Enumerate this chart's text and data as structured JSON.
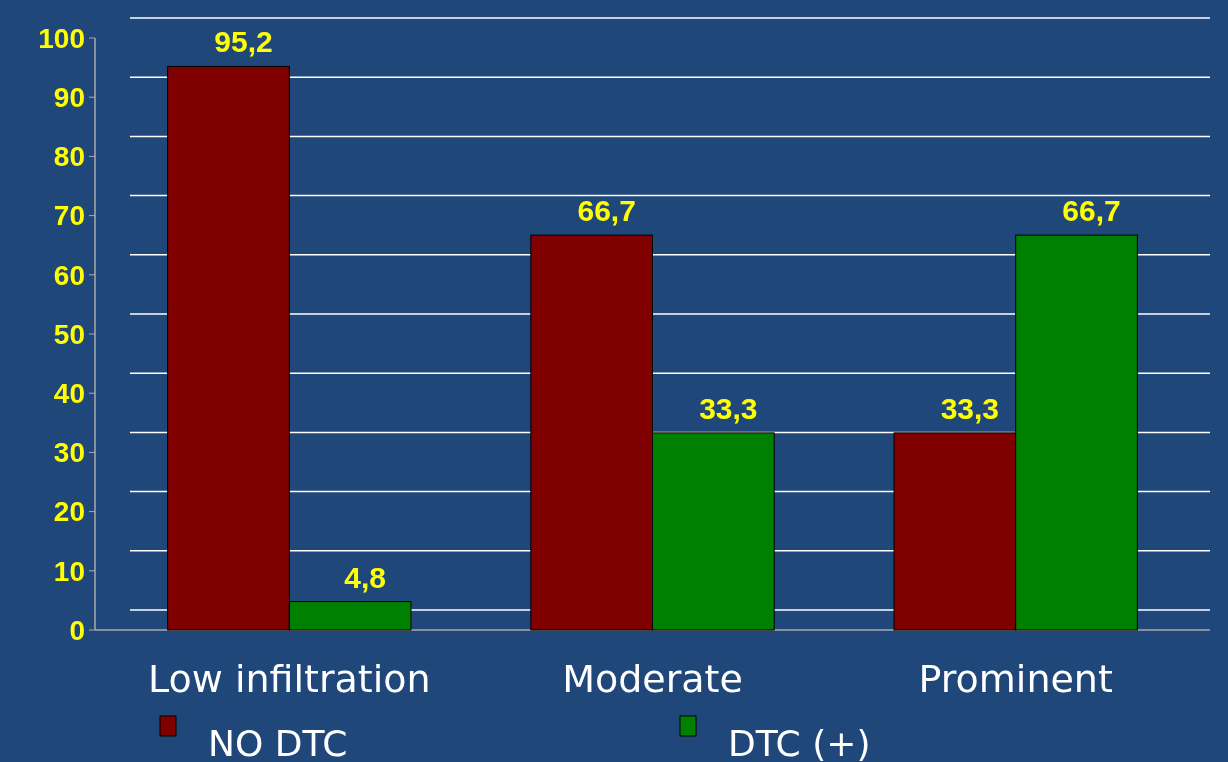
{
  "chart_data": {
    "type": "bar",
    "categories": [
      "Low infiltration",
      "Moderate",
      "Prominent"
    ],
    "series": [
      {
        "name": "NO DTC",
        "color": "#800000",
        "values": [
          95.2,
          66.7,
          33.3
        ],
        "value_labels": [
          "95,2",
          "66,7",
          "33,3"
        ]
      },
      {
        "name": "DTC (+)",
        "color": "#008000",
        "values": [
          4.8,
          33.3,
          66.7
        ],
        "value_labels": [
          "4,8",
          "33,3",
          "66,7"
        ]
      }
    ],
    "ylim": [
      0,
      100
    ],
    "yticks": [
      0,
      10,
      20,
      30,
      40,
      50,
      60,
      70,
      80,
      90,
      100
    ],
    "grid": "y",
    "legend": "bottom"
  }
}
